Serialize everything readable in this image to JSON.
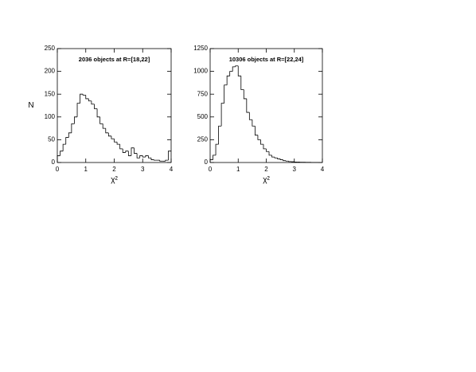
{
  "chart_data": [
    {
      "type": "histogram",
      "title": "2036 objects at R=[18,22]",
      "x_label": "χ²",
      "y_label": "N",
      "bins": [
        0,
        0.1,
        0.2,
        0.3,
        0.4,
        0.5,
        0.6,
        0.7,
        0.8,
        0.9,
        1,
        1.1,
        1.2,
        1.3,
        1.4,
        1.5,
        1.6,
        1.7,
        1.8,
        1.9,
        2,
        2.1,
        2.2,
        2.3,
        2.4,
        2.5,
        2.6,
        2.7,
        2.8,
        2.9,
        3,
        3.1,
        3.2,
        3.3,
        3.4,
        3.5,
        3.6,
        3.7,
        3.8,
        3.9,
        4
      ],
      "values": [
        15,
        25,
        40,
        55,
        65,
        85,
        100,
        130,
        150,
        148,
        140,
        135,
        128,
        118,
        100,
        85,
        75,
        65,
        58,
        52,
        45,
        40,
        30,
        22,
        25,
        15,
        32,
        20,
        10,
        15,
        12,
        15,
        10,
        6,
        5,
        5,
        3,
        3,
        5,
        25
      ],
      "color": "#000000",
      "xlim": [
        0,
        4
      ],
      "xticks": [
        0,
        1,
        2,
        3,
        4
      ],
      "ylim": [
        0,
        250
      ],
      "yticks": [
        0,
        50,
        100,
        150,
        200,
        250
      ]
    },
    {
      "type": "histogram",
      "title": "10306 objects at R=[22,24]",
      "x_label": "χ²",
      "bins": [
        0,
        0.1,
        0.2,
        0.3,
        0.4,
        0.5,
        0.6,
        0.7,
        0.8,
        0.9,
        1,
        1.1,
        1.2,
        1.3,
        1.4,
        1.5,
        1.6,
        1.7,
        1.8,
        1.9,
        2,
        2.1,
        2.2,
        2.3,
        2.4,
        2.5,
        2.6,
        2.7,
        2.8,
        2.9,
        3,
        3.1,
        3.2,
        3.3,
        3.4,
        3.5,
        3.6,
        3.7,
        3.8,
        3.9,
        4
      ],
      "values": [
        30,
        80,
        200,
        400,
        650,
        850,
        950,
        1000,
        1050,
        1060,
        950,
        800,
        700,
        550,
        470,
        400,
        300,
        250,
        200,
        150,
        120,
        80,
        60,
        50,
        40,
        30,
        20,
        15,
        10,
        8,
        5,
        5,
        3,
        3,
        2,
        2,
        1,
        1,
        1,
        1
      ],
      "color": "#000000",
      "xlim": [
        0,
        4
      ],
      "xticks": [
        0,
        1,
        2,
        3,
        4
      ],
      "ylim": [
        0,
        1250
      ],
      "yticks": [
        0,
        250,
        500,
        750,
        1000,
        1250
      ]
    }
  ]
}
